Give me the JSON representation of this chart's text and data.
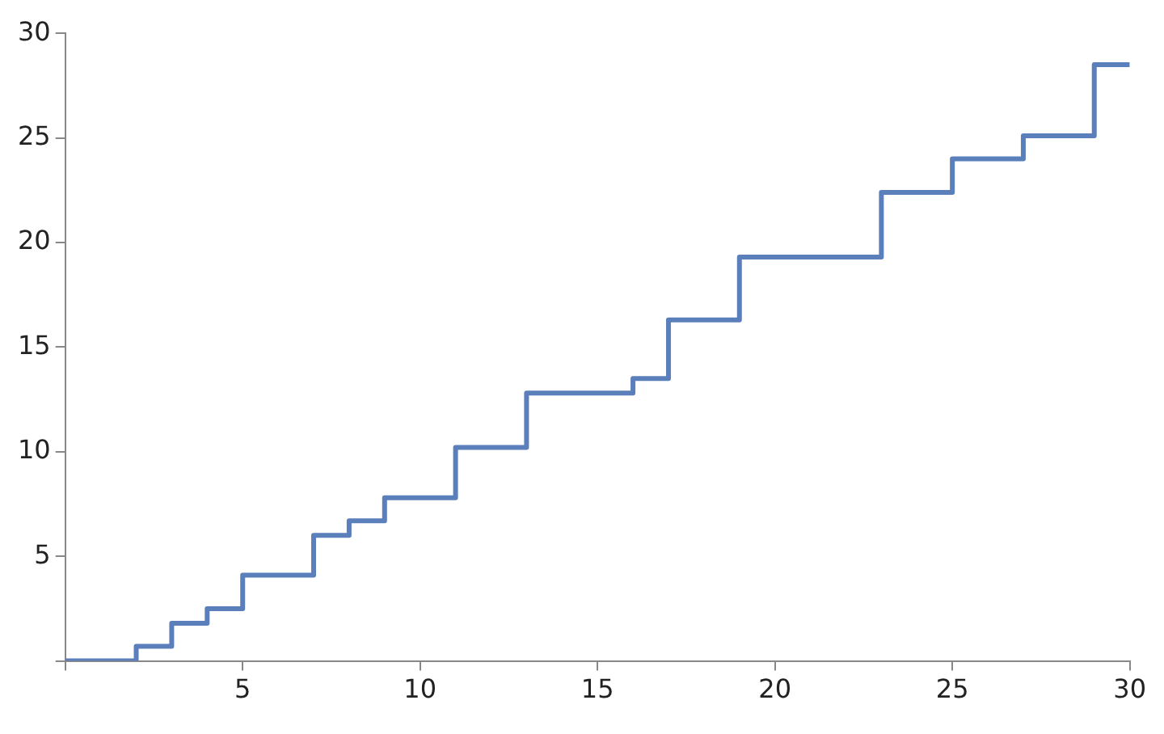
{
  "chart_data": {
    "type": "step",
    "x": [
      0,
      2,
      3,
      4,
      5,
      7,
      8,
      9,
      11,
      13,
      16,
      17,
      19,
      23,
      25,
      27,
      29,
      30
    ],
    "series": [
      {
        "color": "#5b7fbb",
        "values": [
          0,
          0.7,
          1.8,
          2.5,
          4.1,
          6.0,
          6.7,
          7.8,
          10.2,
          12.8,
          13.5,
          16.3,
          19.3,
          22.4,
          24.0,
          25.1,
          28.5,
          28.5
        ]
      }
    ],
    "xlim": [
      0,
      30
    ],
    "ylim": [
      0,
      30
    ],
    "xticks": [
      {
        "value": 0,
        "label": null
      },
      5,
      10,
      15,
      20,
      25,
      30
    ],
    "yticks": [
      {
        "value": 0,
        "label": null
      },
      5,
      10,
      15,
      20,
      25,
      30
    ],
    "grid": false,
    "legend": false,
    "marker": "none",
    "line_style": "solid"
  }
}
